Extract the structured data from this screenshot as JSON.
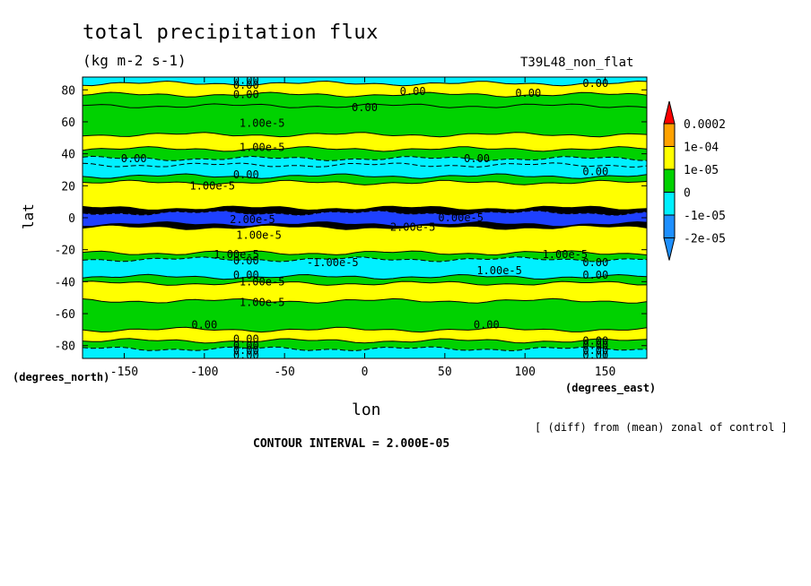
{
  "chart_data": {
    "type": "heatmap",
    "title": "total precipitation flux",
    "units": "(kg m-2 s-1)",
    "run_label": "T39L48_non_flat",
    "xlabel": "lon",
    "ylabel": "lat",
    "x_unit_label": "(degrees_east)",
    "y_unit_label": "(degrees_north)",
    "xlim": [
      -176,
      176
    ],
    "ylim": [
      -88,
      88
    ],
    "x_ticks": [
      "-150",
      "-100",
      "-50",
      "0",
      "50",
      "100",
      "150"
    ],
    "x_tick_values": [
      -150,
      -100,
      -50,
      0,
      50,
      100,
      150
    ],
    "y_ticks": [
      "80",
      "60",
      "40",
      "20",
      "0",
      "-20",
      "-40",
      "-60",
      "-80"
    ],
    "y_tick_values": [
      80,
      60,
      40,
      20,
      0,
      -20,
      -40,
      -60,
      -80
    ],
    "note": "[ (diff) from (mean) zonal of control ]",
    "contour_interval": "CONTOUR INTERVAL = 2.000E-05",
    "legend": {
      "labels": [
        "0.0002",
        "1e-04",
        "1e-05",
        "0",
        "-1e-05",
        "-2e-05"
      ],
      "colors": [
        "#ff0000",
        "#ffa200",
        "#ffff00",
        "#00d200",
        "#00f0ff",
        "#1e90ff",
        "#0000ff",
        "#000080"
      ]
    },
    "bands": [
      {
        "lat": [
          84,
          88
        ],
        "color": "#00f0ff"
      },
      {
        "lat": [
          77,
          84
        ],
        "color": "#ffff00"
      },
      {
        "lat": [
          70,
          77
        ],
        "color": "#00d200"
      },
      {
        "lat": [
          52,
          70
        ],
        "color": "#00d200"
      },
      {
        "lat": [
          43,
          52
        ],
        "color": "#ffff00"
      },
      {
        "lat": [
          37,
          43
        ],
        "color": "#00d200"
      },
      {
        "lat": [
          33,
          37
        ],
        "color": "#00f0ff"
      },
      {
        "lat": [
          26,
          33
        ],
        "color": "#00f0ff"
      },
      {
        "lat": [
          22,
          26
        ],
        "color": "#00d200"
      },
      {
        "lat": [
          6,
          22
        ],
        "color": "#ffff00"
      },
      {
        "lat": [
          3,
          6
        ],
        "color": "#000000"
      },
      {
        "lat": [
          -4,
          3
        ],
        "color": "#1e40ff"
      },
      {
        "lat": [
          -6,
          -4
        ],
        "color": "#000000"
      },
      {
        "lat": [
          -22,
          -6
        ],
        "color": "#ffff00"
      },
      {
        "lat": [
          -26,
          -22
        ],
        "color": "#00d200"
      },
      {
        "lat": [
          -37,
          -26
        ],
        "color": "#00f0ff"
      },
      {
        "lat": [
          -41,
          -37
        ],
        "color": "#00d200"
      },
      {
        "lat": [
          -52,
          -41
        ],
        "color": "#ffff00"
      },
      {
        "lat": [
          -70,
          -52
        ],
        "color": "#00d200"
      },
      {
        "lat": [
          -77,
          -70
        ],
        "color": "#ffff00"
      },
      {
        "lat": [
          -82,
          -77
        ],
        "color": "#00d200"
      },
      {
        "lat": [
          -88,
          -82
        ],
        "color": "#00f0ff"
      }
    ],
    "contour_labels": [
      {
        "text": "0.00",
        "lon": -74,
        "lat": 86
      },
      {
        "text": "0.00",
        "lon": -74,
        "lat": 83
      },
      {
        "text": "0.00",
        "lon": -74,
        "lat": 77
      },
      {
        "text": "0.00",
        "lon": 30,
        "lat": 79
      },
      {
        "text": "0.00",
        "lon": 102,
        "lat": 78
      },
      {
        "text": "0.00",
        "lon": 144,
        "lat": 84
      },
      {
        "text": "0.00",
        "lon": 0,
        "lat": 69
      },
      {
        "text": "1.00e-5",
        "lon": -64,
        "lat": 59
      },
      {
        "text": "1.00e-5",
        "lon": -64,
        "lat": 44
      },
      {
        "text": "0.00",
        "lon": -144,
        "lat": 37
      },
      {
        "text": "0.00",
        "lon": -74,
        "lat": 27
      },
      {
        "text": "1.00e-5",
        "lon": -95,
        "lat": 20
      },
      {
        "text": "0.00",
        "lon": 70,
        "lat": 37
      },
      {
        "text": "0.00",
        "lon": 144,
        "lat": 29
      },
      {
        "text": "2.00e-5",
        "lon": -70,
        "lat": -1
      },
      {
        "text": "2.00e-5",
        "lon": 30,
        "lat": -6
      },
      {
        "text": "0.00e-5",
        "lon": 60,
        "lat": 0
      },
      {
        "text": "1.00e-5",
        "lon": -66,
        "lat": -11
      },
      {
        "text": "1.00e-5",
        "lon": -80,
        "lat": -23
      },
      {
        "text": "0.00",
        "lon": -74,
        "lat": -27
      },
      {
        "text": "-1.00e-5",
        "lon": -20,
        "lat": -28
      },
      {
        "text": "1.00e-5",
        "lon": 125,
        "lat": -23
      },
      {
        "text": "0.00",
        "lon": 144,
        "lat": -28
      },
      {
        "text": "1.00e-5",
        "lon": 84,
        "lat": -33
      },
      {
        "text": "0.00",
        "lon": -74,
        "lat": -36
      },
      {
        "text": "1.00e-5",
        "lon": -64,
        "lat": -40
      },
      {
        "text": "0.00",
        "lon": 144,
        "lat": -36
      },
      {
        "text": "1.00e-5",
        "lon": -64,
        "lat": -53
      },
      {
        "text": "0.00",
        "lon": -100,
        "lat": -67
      },
      {
        "text": "0.00",
        "lon": 76,
        "lat": -67
      },
      {
        "text": "0.00",
        "lon": -74,
        "lat": -76
      },
      {
        "text": "0.00",
        "lon": -74,
        "lat": -80
      },
      {
        "text": "0.00",
        "lon": 144,
        "lat": -77
      },
      {
        "text": "0.00",
        "lon": 144,
        "lat": -80
      },
      {
        "text": "0.00",
        "lon": -74,
        "lat": -83
      },
      {
        "text": "0.00",
        "lon": -74,
        "lat": -86
      },
      {
        "text": "0.00",
        "lon": 144,
        "lat": -83
      },
      {
        "text": "0.00",
        "lon": 144,
        "lat": -86
      }
    ]
  }
}
